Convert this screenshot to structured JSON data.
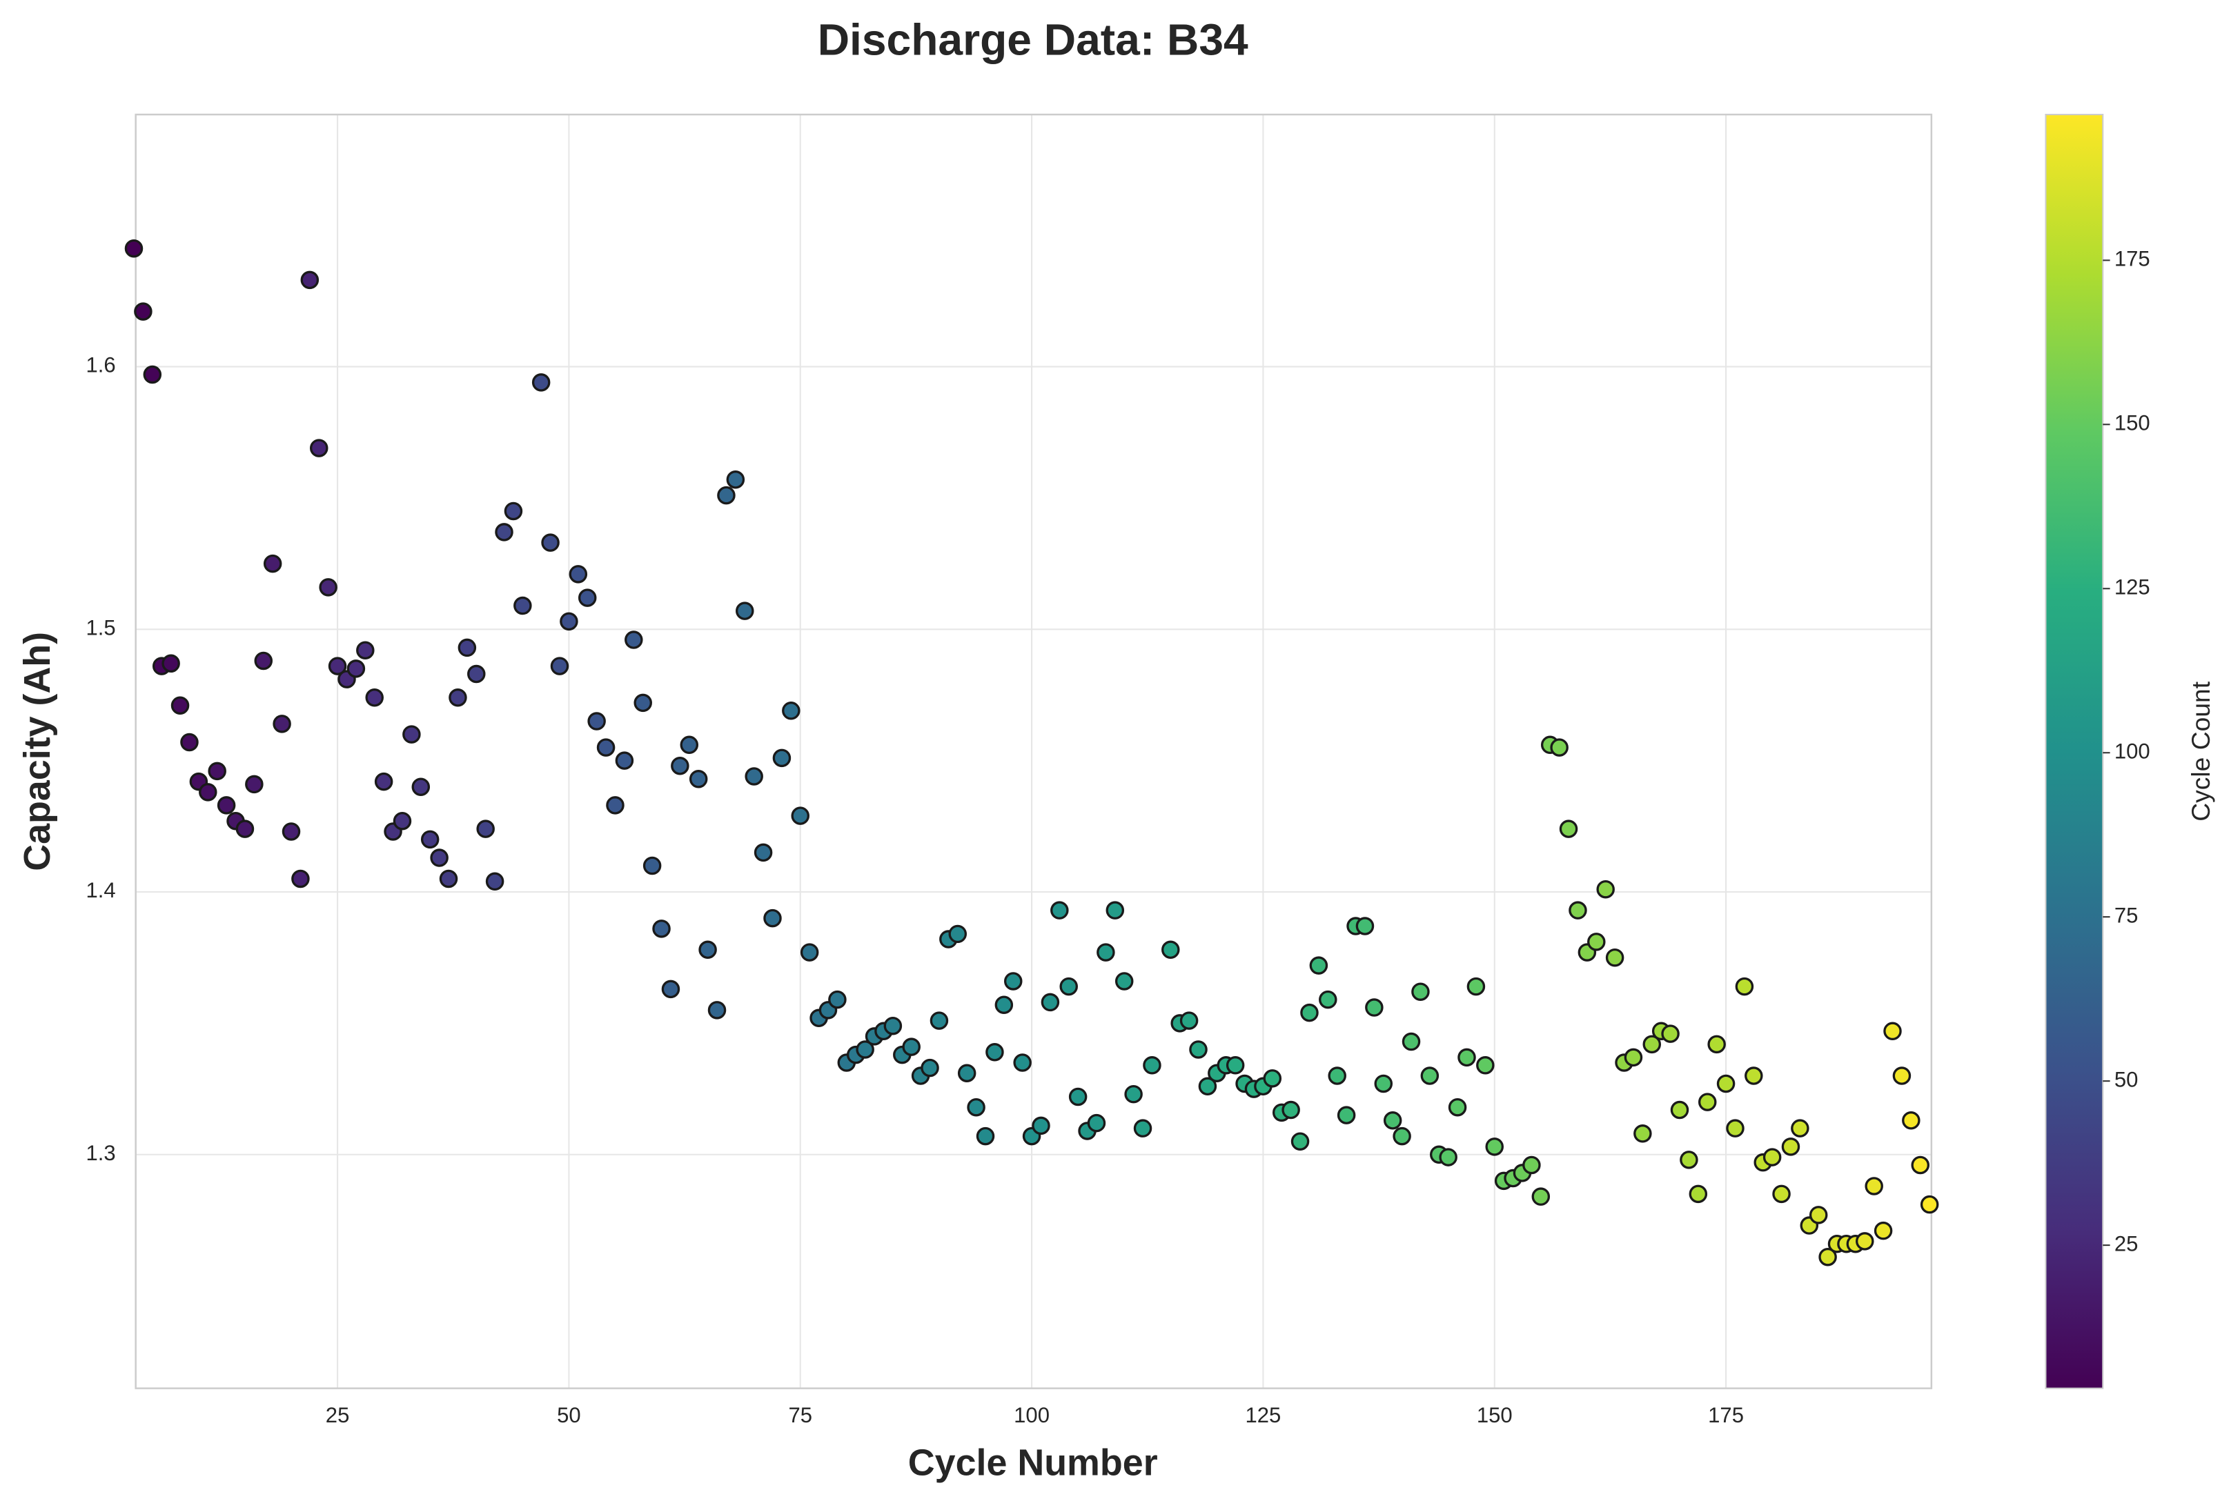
{
  "chart_data": {
    "type": "scatter",
    "title": "Discharge Data: B34",
    "x_label": "Cycle Number",
    "y_label": "Capacity (Ah)",
    "colorbar_label": "Cycle Count",
    "colormap": "viridis",
    "grid": true,
    "x": [
      3,
      4,
      5,
      6,
      7,
      8,
      9,
      10,
      11,
      12,
      13,
      14,
      15,
      16,
      17,
      18,
      19,
      20,
      21,
      22,
      23,
      24,
      25,
      26,
      27,
      28,
      29,
      30,
      31,
      32,
      33,
      34,
      35,
      36,
      37,
      38,
      39,
      40,
      41,
      42,
      43,
      44,
      45,
      47,
      48,
      49,
      50,
      51,
      52,
      53,
      54,
      55,
      56,
      57,
      58,
      59,
      60,
      61,
      62,
      63,
      64,
      65,
      66,
      67,
      68,
      69,
      70,
      71,
      72,
      73,
      74,
      75,
      76,
      77,
      78,
      79,
      80,
      81,
      82,
      83,
      84,
      85,
      86,
      87,
      88,
      89,
      90,
      91,
      92,
      93,
      94,
      95,
      96,
      97,
      98,
      99,
      100,
      101,
      102,
      103,
      104,
      105,
      106,
      107,
      108,
      109,
      110,
      111,
      112,
      113,
      115,
      116,
      117,
      118,
      119,
      120,
      121,
      122,
      123,
      124,
      125,
      126,
      127,
      128,
      129,
      130,
      131,
      132,
      133,
      134,
      135,
      136,
      137,
      138,
      139,
      140,
      141,
      142,
      143,
      144,
      145,
      146,
      147,
      148,
      149,
      150,
      151,
      152,
      153,
      154,
      155,
      156,
      157,
      158,
      159,
      160,
      161,
      162,
      163,
      164,
      165,
      166,
      167,
      168,
      169,
      170,
      171,
      172,
      173,
      174,
      175,
      176,
      177,
      178,
      179,
      180,
      181,
      182,
      183,
      184,
      185,
      186,
      187,
      188,
      189,
      190,
      191,
      192,
      193,
      194,
      195,
      196,
      197
    ],
    "y": [
      1.645,
      1.621,
      1.597,
      1.486,
      1.487,
      1.471,
      1.457,
      1.442,
      1.438,
      1.446,
      1.433,
      1.427,
      1.424,
      1.441,
      1.488,
      1.525,
      1.464,
      1.423,
      1.405,
      1.633,
      1.569,
      1.516,
      1.486,
      1.481,
      1.485,
      1.492,
      1.474,
      1.442,
      1.423,
      1.427,
      1.46,
      1.44,
      1.42,
      1.413,
      1.405,
      1.474,
      1.493,
      1.483,
      1.424,
      1.404,
      1.537,
      1.545,
      1.509,
      1.594,
      1.533,
      1.486,
      1.503,
      1.521,
      1.512,
      1.465,
      1.455,
      1.433,
      1.45,
      1.496,
      1.472,
      1.41,
      1.386,
      1.363,
      1.448,
      1.456,
      1.443,
      1.378,
      1.355,
      1.551,
      1.557,
      1.507,
      1.444,
      1.415,
      1.39,
      1.451,
      1.469,
      1.429,
      1.377,
      1.352,
      1.355,
      1.359,
      1.335,
      1.338,
      1.34,
      1.345,
      1.347,
      1.349,
      1.338,
      1.341,
      1.33,
      1.333,
      1.351,
      1.382,
      1.384,
      1.331,
      1.318,
      1.307,
      1.339,
      1.357,
      1.366,
      1.335,
      1.307,
      1.311,
      1.358,
      1.393,
      1.364,
      1.322,
      1.309,
      1.312,
      1.377,
      1.393,
      1.366,
      1.323,
      1.31,
      1.334,
      1.378,
      1.35,
      1.351,
      1.34,
      1.326,
      1.331,
      1.334,
      1.334,
      1.327,
      1.325,
      1.326,
      1.329,
      1.316,
      1.317,
      1.305,
      1.354,
      1.372,
      1.359,
      1.33,
      1.315,
      1.387,
      1.387,
      1.356,
      1.327,
      1.313,
      1.307,
      1.343,
      1.362,
      1.33,
      1.3,
      1.299,
      1.318,
      1.337,
      1.364,
      1.334,
      1.303,
      1.29,
      1.291,
      1.293,
      1.296,
      1.284,
      1.456,
      1.455,
      1.424,
      1.393,
      1.377,
      1.381,
      1.401,
      1.375,
      1.335,
      1.337,
      1.308,
      1.342,
      1.347,
      1.346,
      1.317,
      1.298,
      1.285,
      1.32,
      1.342,
      1.327,
      1.31,
      1.364,
      1.33,
      1.297,
      1.299,
      1.285,
      1.303,
      1.31,
      1.273,
      1.277,
      1.261,
      1.266,
      1.266,
      1.266,
      1.267,
      1.288,
      1.271,
      1.347,
      1.33,
      1.313,
      1.296,
      1.281
    ],
    "xlim": [
      3.2,
      197.2
    ],
    "ylim": [
      1.211,
      1.696
    ],
    "xticks": [
      25,
      50,
      75,
      100,
      125,
      150,
      175
    ],
    "yticks": [
      1.3,
      1.4,
      1.5,
      1.6
    ],
    "clim": [
      3.2,
      197.2
    ],
    "cticks": [
      25,
      50,
      75,
      100,
      125,
      150,
      175
    ]
  }
}
